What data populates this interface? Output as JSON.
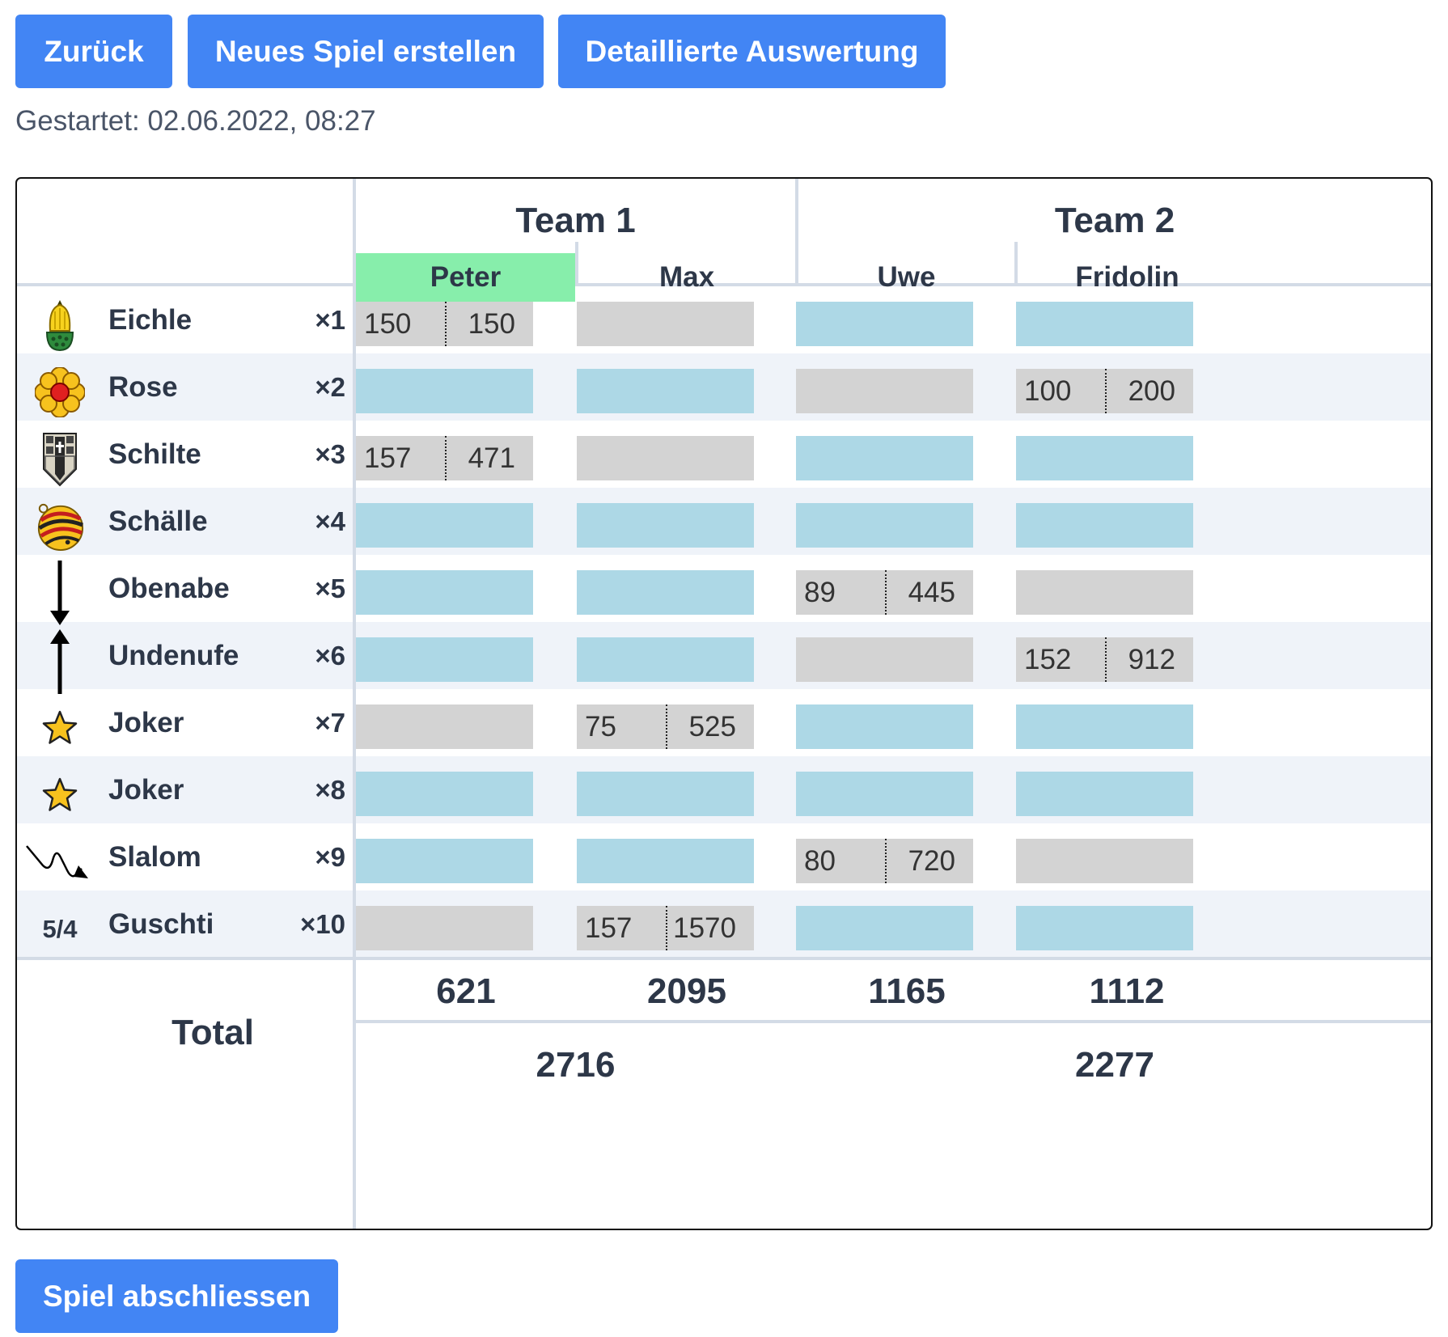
{
  "toolbar": {
    "back_label": "Zurück",
    "new_game_label": "Neues Spiel erstellen",
    "details_label": "Detaillierte Auswertung"
  },
  "started_text": "Gestartet: 02.06.2022, 08:27",
  "teams": [
    {
      "name": "Team 1",
      "total": "2716"
    },
    {
      "name": "Team 2",
      "total": "2277"
    }
  ],
  "players": [
    {
      "name": "Peter",
      "active": true,
      "total": "621"
    },
    {
      "name": "Max",
      "active": false,
      "total": "2095"
    },
    {
      "name": "Uwe",
      "active": false,
      "total": "1165"
    },
    {
      "name": "Fridolin",
      "active": false,
      "total": "1112"
    }
  ],
  "games": [
    {
      "label": "Eichle",
      "mult": "×1",
      "icon": "acorn-icon",
      "cells": [
        {
          "state": "played",
          "points": "150",
          "score": "150"
        },
        {
          "state": "blocked"
        },
        {
          "state": "open"
        },
        {
          "state": "open"
        }
      ]
    },
    {
      "label": "Rose",
      "mult": "×2",
      "icon": "rose-icon",
      "cells": [
        {
          "state": "open"
        },
        {
          "state": "open"
        },
        {
          "state": "blocked"
        },
        {
          "state": "played",
          "points": "100",
          "score": "200"
        }
      ]
    },
    {
      "label": "Schilte",
      "mult": "×3",
      "icon": "shield-icon",
      "cells": [
        {
          "state": "played",
          "points": "157",
          "score": "471"
        },
        {
          "state": "blocked"
        },
        {
          "state": "open"
        },
        {
          "state": "open"
        }
      ]
    },
    {
      "label": "Schälle",
      "mult": "×4",
      "icon": "bell-icon",
      "cells": [
        {
          "state": "open"
        },
        {
          "state": "open"
        },
        {
          "state": "open"
        },
        {
          "state": "open"
        }
      ]
    },
    {
      "label": "Obenabe",
      "mult": "×5",
      "icon": "arrow-down-icon",
      "cells": [
        {
          "state": "open"
        },
        {
          "state": "open"
        },
        {
          "state": "played",
          "points": "89",
          "score": "445"
        },
        {
          "state": "blocked"
        }
      ]
    },
    {
      "label": "Undenufe",
      "mult": "×6",
      "icon": "arrow-up-icon",
      "cells": [
        {
          "state": "open"
        },
        {
          "state": "open"
        },
        {
          "state": "blocked"
        },
        {
          "state": "played",
          "points": "152",
          "score": "912"
        }
      ]
    },
    {
      "label": "Joker",
      "mult": "×7",
      "icon": "star-icon",
      "cells": [
        {
          "state": "blocked"
        },
        {
          "state": "played",
          "points": "75",
          "score": "525"
        },
        {
          "state": "open"
        },
        {
          "state": "open"
        }
      ]
    },
    {
      "label": "Joker",
      "mult": "×8",
      "icon": "star-icon",
      "cells": [
        {
          "state": "open"
        },
        {
          "state": "open"
        },
        {
          "state": "open"
        },
        {
          "state": "open"
        }
      ]
    },
    {
      "label": "Slalom",
      "mult": "×9",
      "icon": "slalom-arrow-icon",
      "cells": [
        {
          "state": "open"
        },
        {
          "state": "open"
        },
        {
          "state": "played",
          "points": "80",
          "score": "720"
        },
        {
          "state": "blocked"
        }
      ]
    },
    {
      "label": "Guschti",
      "mult": "×10",
      "icon": "text",
      "icon_text": "5/4",
      "cells": [
        {
          "state": "blocked"
        },
        {
          "state": "played",
          "points": "157",
          "score": "1570"
        },
        {
          "state": "open"
        },
        {
          "state": "open"
        }
      ]
    }
  ],
  "total_label": "Total",
  "finish_label": "Spiel abschliessen",
  "colors": {
    "primary": "#4285f4",
    "active_player": "#87eeab",
    "open_cell": "#add8e6",
    "blocked_cell": "#d3d3d3",
    "alt_row": "#eff3f9"
  }
}
